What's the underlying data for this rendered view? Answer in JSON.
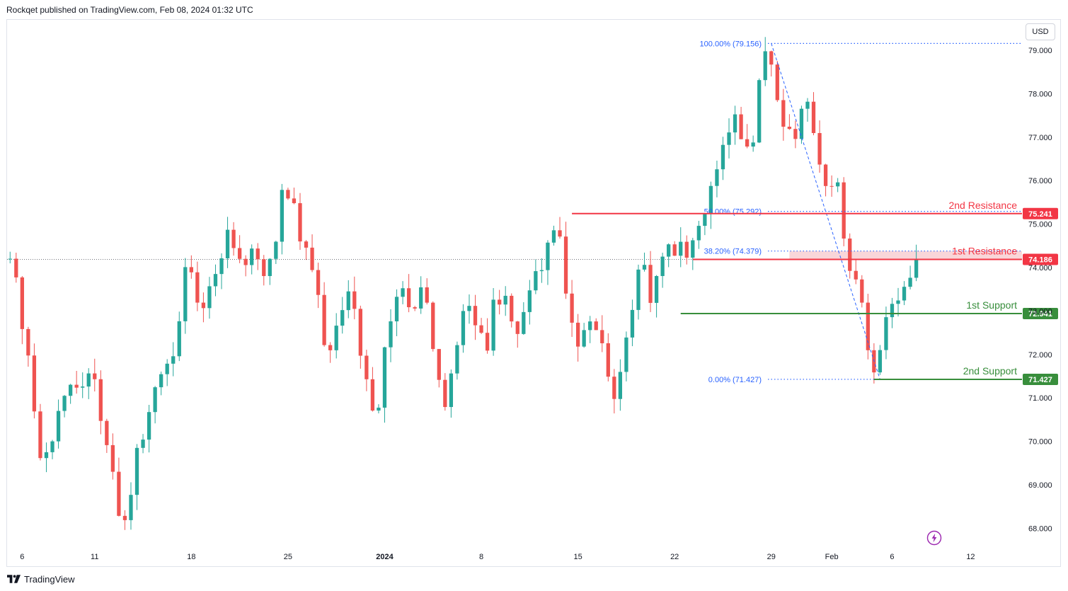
{
  "header": {
    "text": "Rockqet published on TradingView.com, Feb 08, 2024 01:32 UTC"
  },
  "currency": {
    "label": "USD"
  },
  "footer": {
    "brand": "TradingView"
  },
  "colors": {
    "bull": "#26a69a",
    "bear": "#ef5350",
    "resistance": "#f23645",
    "support": "#388e3c",
    "fib": "#2962ff",
    "text": "#131722",
    "axis_text": "#131722",
    "zone": "#f8cfd2",
    "lightning": "#9c27b0"
  },
  "chart_data": {
    "type": "candlestick",
    "instrument_currency": "USD",
    "x_ticks": [
      {
        "label": "6",
        "bar": 2
      },
      {
        "label": "11",
        "bar": 14
      },
      {
        "label": "18",
        "bar": 30
      },
      {
        "label": "25",
        "bar": 46
      },
      {
        "label": "2024",
        "bar": 62
      },
      {
        "label": "8",
        "bar": 78
      },
      {
        "label": "15",
        "bar": 94
      },
      {
        "label": "22",
        "bar": 110
      },
      {
        "label": "29",
        "bar": 126
      },
      {
        "label": "Feb",
        "bar": 136
      },
      {
        "label": "6",
        "bar": 146
      },
      {
        "label": "12",
        "bar": 159
      }
    ],
    "y_ticks": [
      68.0,
      69.0,
      70.0,
      71.0,
      72.0,
      73.0,
      74.0,
      75.0,
      76.0,
      77.0,
      78.0,
      79.0
    ],
    "ylim": [
      67.55,
      79.7
    ],
    "bar_count": 168,
    "last_bar": 150,
    "anchors": [
      [
        0,
        74.2
      ],
      [
        2,
        73.3
      ],
      [
        4,
        71.4
      ],
      [
        5,
        69.6
      ],
      [
        8,
        70.4
      ],
      [
        12,
        71.5
      ],
      [
        15,
        71.1
      ],
      [
        17,
        69.5
      ],
      [
        19,
        68.1
      ],
      [
        22,
        69.9
      ],
      [
        25,
        71.5
      ],
      [
        28,
        72.1
      ],
      [
        30,
        74.6
      ],
      [
        32,
        72.8
      ],
      [
        35,
        74.2
      ],
      [
        37,
        74.8
      ],
      [
        39,
        73.9
      ],
      [
        41,
        74.7
      ],
      [
        43,
        73.6
      ],
      [
        46,
        76.1
      ],
      [
        48,
        75.1
      ],
      [
        50,
        74.2
      ],
      [
        53,
        72.1
      ],
      [
        55,
        72.6
      ],
      [
        57,
        73.9
      ],
      [
        59,
        71.5
      ],
      [
        61,
        70.2
      ],
      [
        63,
        72.6
      ],
      [
        65,
        73.8
      ],
      [
        67,
        72.6
      ],
      [
        69,
        74.0
      ],
      [
        71,
        71.6
      ],
      [
        73,
        70.8
      ],
      [
        75,
        72.8
      ],
      [
        77,
        73.1
      ],
      [
        79,
        72.0
      ],
      [
        81,
        73.4
      ],
      [
        83,
        73.0
      ],
      [
        85,
        72.4
      ],
      [
        87,
        73.8
      ],
      [
        89,
        74.2
      ],
      [
        91,
        74.9
      ],
      [
        93,
        73.2
      ],
      [
        95,
        72.2
      ],
      [
        97,
        72.9
      ],
      [
        99,
        71.8
      ],
      [
        101,
        70.9
      ],
      [
        103,
        72.8
      ],
      [
        105,
        74.2
      ],
      [
        107,
        73.2
      ],
      [
        109,
        74.8
      ],
      [
        111,
        74.3
      ],
      [
        113,
        74.4
      ],
      [
        115,
        74.9
      ],
      [
        117,
        76.2
      ],
      [
        119,
        77.0
      ],
      [
        121,
        77.4
      ],
      [
        123,
        76.5
      ],
      [
        125,
        78.8
      ],
      [
        126,
        79.0
      ],
      [
        128,
        77.3
      ],
      [
        130,
        76.8
      ],
      [
        132,
        77.8
      ],
      [
        134,
        76.9
      ],
      [
        136,
        75.8
      ],
      [
        137,
        76.3
      ],
      [
        138,
        75.4
      ],
      [
        139,
        74.1
      ],
      [
        140,
        73.6
      ],
      [
        141,
        74.0
      ],
      [
        142,
        72.1
      ],
      [
        143,
        71.9
      ],
      [
        144,
        71.5
      ],
      [
        145,
        72.7
      ],
      [
        146,
        72.9
      ],
      [
        147,
        73.3
      ],
      [
        148,
        73.6
      ],
      [
        149,
        73.9
      ],
      [
        150,
        74.1
      ]
    ],
    "current_price": 74.186,
    "levels": [
      {
        "name": "2nd Resistance",
        "price": 75.241,
        "price_label": "75.241",
        "kind": "resistance",
        "from_bar": 93
      },
      {
        "name": "1st Resistance",
        "price": 74.186,
        "price_label": "74.186",
        "kind": "resistance",
        "from_bar": 113
      },
      {
        "name": "1st Support",
        "price": 72.941,
        "price_label": "72.941",
        "kind": "support",
        "from_bar": 111
      },
      {
        "name": "2nd Support",
        "price": 71.427,
        "price_label": "71.427",
        "kind": "support",
        "from_bar": 143
      }
    ],
    "resistance_zone": {
      "low": 74.186,
      "high": 74.379,
      "from_bar": 129
    },
    "fibonacci": {
      "from": {
        "bar": 126,
        "price": 79.156
      },
      "to": {
        "bar": 144,
        "price": 71.427
      },
      "levels": [
        {
          "label": "100.00% (79.156)",
          "price": 79.156
        },
        {
          "label": "50.00% (75.292)",
          "price": 75.292
        },
        {
          "label": "38.20% (74.379)",
          "price": 74.379
        },
        {
          "label": "0.00% (71.427)",
          "price": 71.427
        }
      ]
    }
  }
}
